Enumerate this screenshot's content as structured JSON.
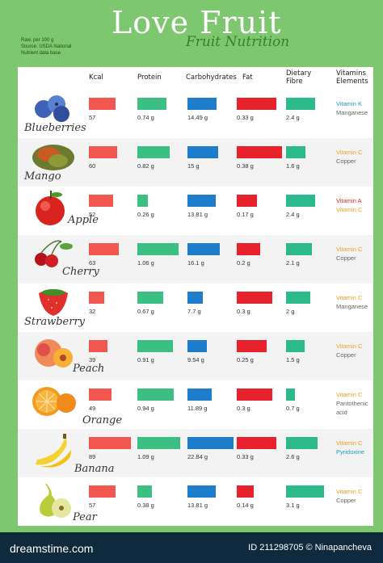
{
  "header": {
    "title": "Love Fruit",
    "subtitle": "Fruit Nutrition",
    "meta_lines": [
      "Raw, per 100 g",
      "Source: USDA National",
      "Nutrient data base"
    ]
  },
  "colors": {
    "kcal": "#f2574f",
    "protein": "#3cbf83",
    "carbs": "#1f7ecb",
    "fat": "#e8222c",
    "fibre": "#2cb98c",
    "vit_orange": "#f3a01f",
    "vit_gray": "#666666",
    "vit_teal": "#1c9cbf",
    "vit_red": "#e32a2a"
  },
  "chart_data": {
    "type": "table",
    "units_note": "Raw, per 100 g",
    "columns": [
      "Kcal",
      "Protein",
      "Carbohydrates",
      "Fat",
      "Dietary Fibre",
      "Vitamins Elements"
    ],
    "fruits": [
      {
        "name": "Blueberries",
        "kcal": 57,
        "protein": 0.74,
        "carbs": 14.49,
        "fat": 0.33,
        "fibre": 2.4,
        "kcal_label": "57",
        "protein_label": "0.74 g",
        "carbs_label": "14.49 g",
        "fat_label": "0.33 g",
        "fibre_label": "2.4 g",
        "vitamins": [
          {
            "text": "Vitamin K",
            "color": "#1c9cbf"
          },
          {
            "text": "Manganese",
            "color": "#666666"
          }
        ]
      },
      {
        "name": "Mango",
        "kcal": 60,
        "protein": 0.82,
        "carbs": 15,
        "fat": 0.38,
        "fibre": 1.6,
        "kcal_label": "60",
        "protein_label": "0.82 g",
        "carbs_label": "15 g",
        "fat_label": "0.38 g",
        "fibre_label": "1.6 g",
        "vitamins": [
          {
            "text": "Vitamin C",
            "color": "#f3a01f"
          },
          {
            "text": "Copper",
            "color": "#666666"
          }
        ]
      },
      {
        "name": "Apple",
        "kcal": 52,
        "protein": 0.26,
        "carbs": 13.81,
        "fat": 0.17,
        "fibre": 2.4,
        "kcal_label": "52",
        "protein_label": "0.26 g",
        "carbs_label": "13.81 g",
        "fat_label": "0.17 g",
        "fibre_label": "2.4 g",
        "vitamins": [
          {
            "text": "Vitamin A",
            "color": "#e32a2a"
          },
          {
            "text": "Vitamin C",
            "color": "#f3a01f"
          }
        ]
      },
      {
        "name": "Cherry",
        "kcal": 63,
        "protein": 1.06,
        "carbs": 16.1,
        "fat": 0.2,
        "fibre": 2.1,
        "kcal_label": "63",
        "protein_label": "1.06 g",
        "carbs_label": "16.1 g",
        "fat_label": "0.2 g",
        "fibre_label": "2.1 g",
        "vitamins": [
          {
            "text": "Vitamin C",
            "color": "#f3a01f"
          },
          {
            "text": "Copper",
            "color": "#666666"
          }
        ]
      },
      {
        "name": "Strawberry",
        "kcal": 32,
        "protein": 0.67,
        "carbs": 7.7,
        "fat": 0.3,
        "fibre": 2,
        "kcal_label": "32",
        "protein_label": "0.67 g",
        "carbs_label": "7.7 g",
        "fat_label": "0.3 g",
        "fibre_label": "2 g",
        "vitamins": [
          {
            "text": "Vitamin C",
            "color": "#f3a01f"
          },
          {
            "text": "Manganese",
            "color": "#666666"
          }
        ]
      },
      {
        "name": "Peach",
        "kcal": 39,
        "protein": 0.91,
        "carbs": 9.54,
        "fat": 0.25,
        "fibre": 1.5,
        "kcal_label": "39",
        "protein_label": "0.91 g",
        "carbs_label": "9.54 g",
        "fat_label": "0.25 g",
        "fibre_label": "1.5 g",
        "vitamins": [
          {
            "text": "Vitamin C",
            "color": "#f3a01f"
          },
          {
            "text": "Copper",
            "color": "#666666"
          }
        ]
      },
      {
        "name": "Orange",
        "kcal": 49,
        "protein": 0.94,
        "carbs": 11.89,
        "fat": 0.3,
        "fibre": 0.7,
        "kcal_label": "49",
        "protein_label": "0.94 g",
        "carbs_label": "11.89 g",
        "fat_label": "0.3 g",
        "fibre_label": "0.7 g",
        "vitamins": [
          {
            "text": "Vitamin C",
            "color": "#f3a01f"
          },
          {
            "text": "Pantothenic",
            "color": "#666666"
          },
          {
            "text": "acid",
            "color": "#666666"
          }
        ]
      },
      {
        "name": "Banana",
        "kcal": 89,
        "protein": 1.09,
        "carbs": 22.84,
        "fat": 0.33,
        "fibre": 2.6,
        "kcal_label": "89",
        "protein_label": "1.09 g",
        "carbs_label": "22.84 g",
        "fat_label": "0.33 g",
        "fibre_label": "2.6 g",
        "vitamins": [
          {
            "text": "Vitamin C",
            "color": "#f3a01f"
          },
          {
            "text": "Pyridoxine",
            "color": "#1c9cbf"
          }
        ]
      },
      {
        "name": "Pear",
        "kcal": 57,
        "protein": 0.38,
        "carbs": 13.81,
        "fat": 0.14,
        "fibre": 3.1,
        "kcal_label": "57",
        "protein_label": "0.38 g",
        "carbs_label": "13.81 g",
        "fat_label": "0.14 g",
        "fibre_label": "3.1 g",
        "vitamins": [
          {
            "text": "Vitamin C",
            "color": "#f3a01f"
          },
          {
            "text": "Copper",
            "color": "#666666"
          }
        ]
      }
    ]
  },
  "footer": {
    "logo": "dreamstime.com",
    "id_text": "ID 211298705 © Ninapancheva"
  }
}
